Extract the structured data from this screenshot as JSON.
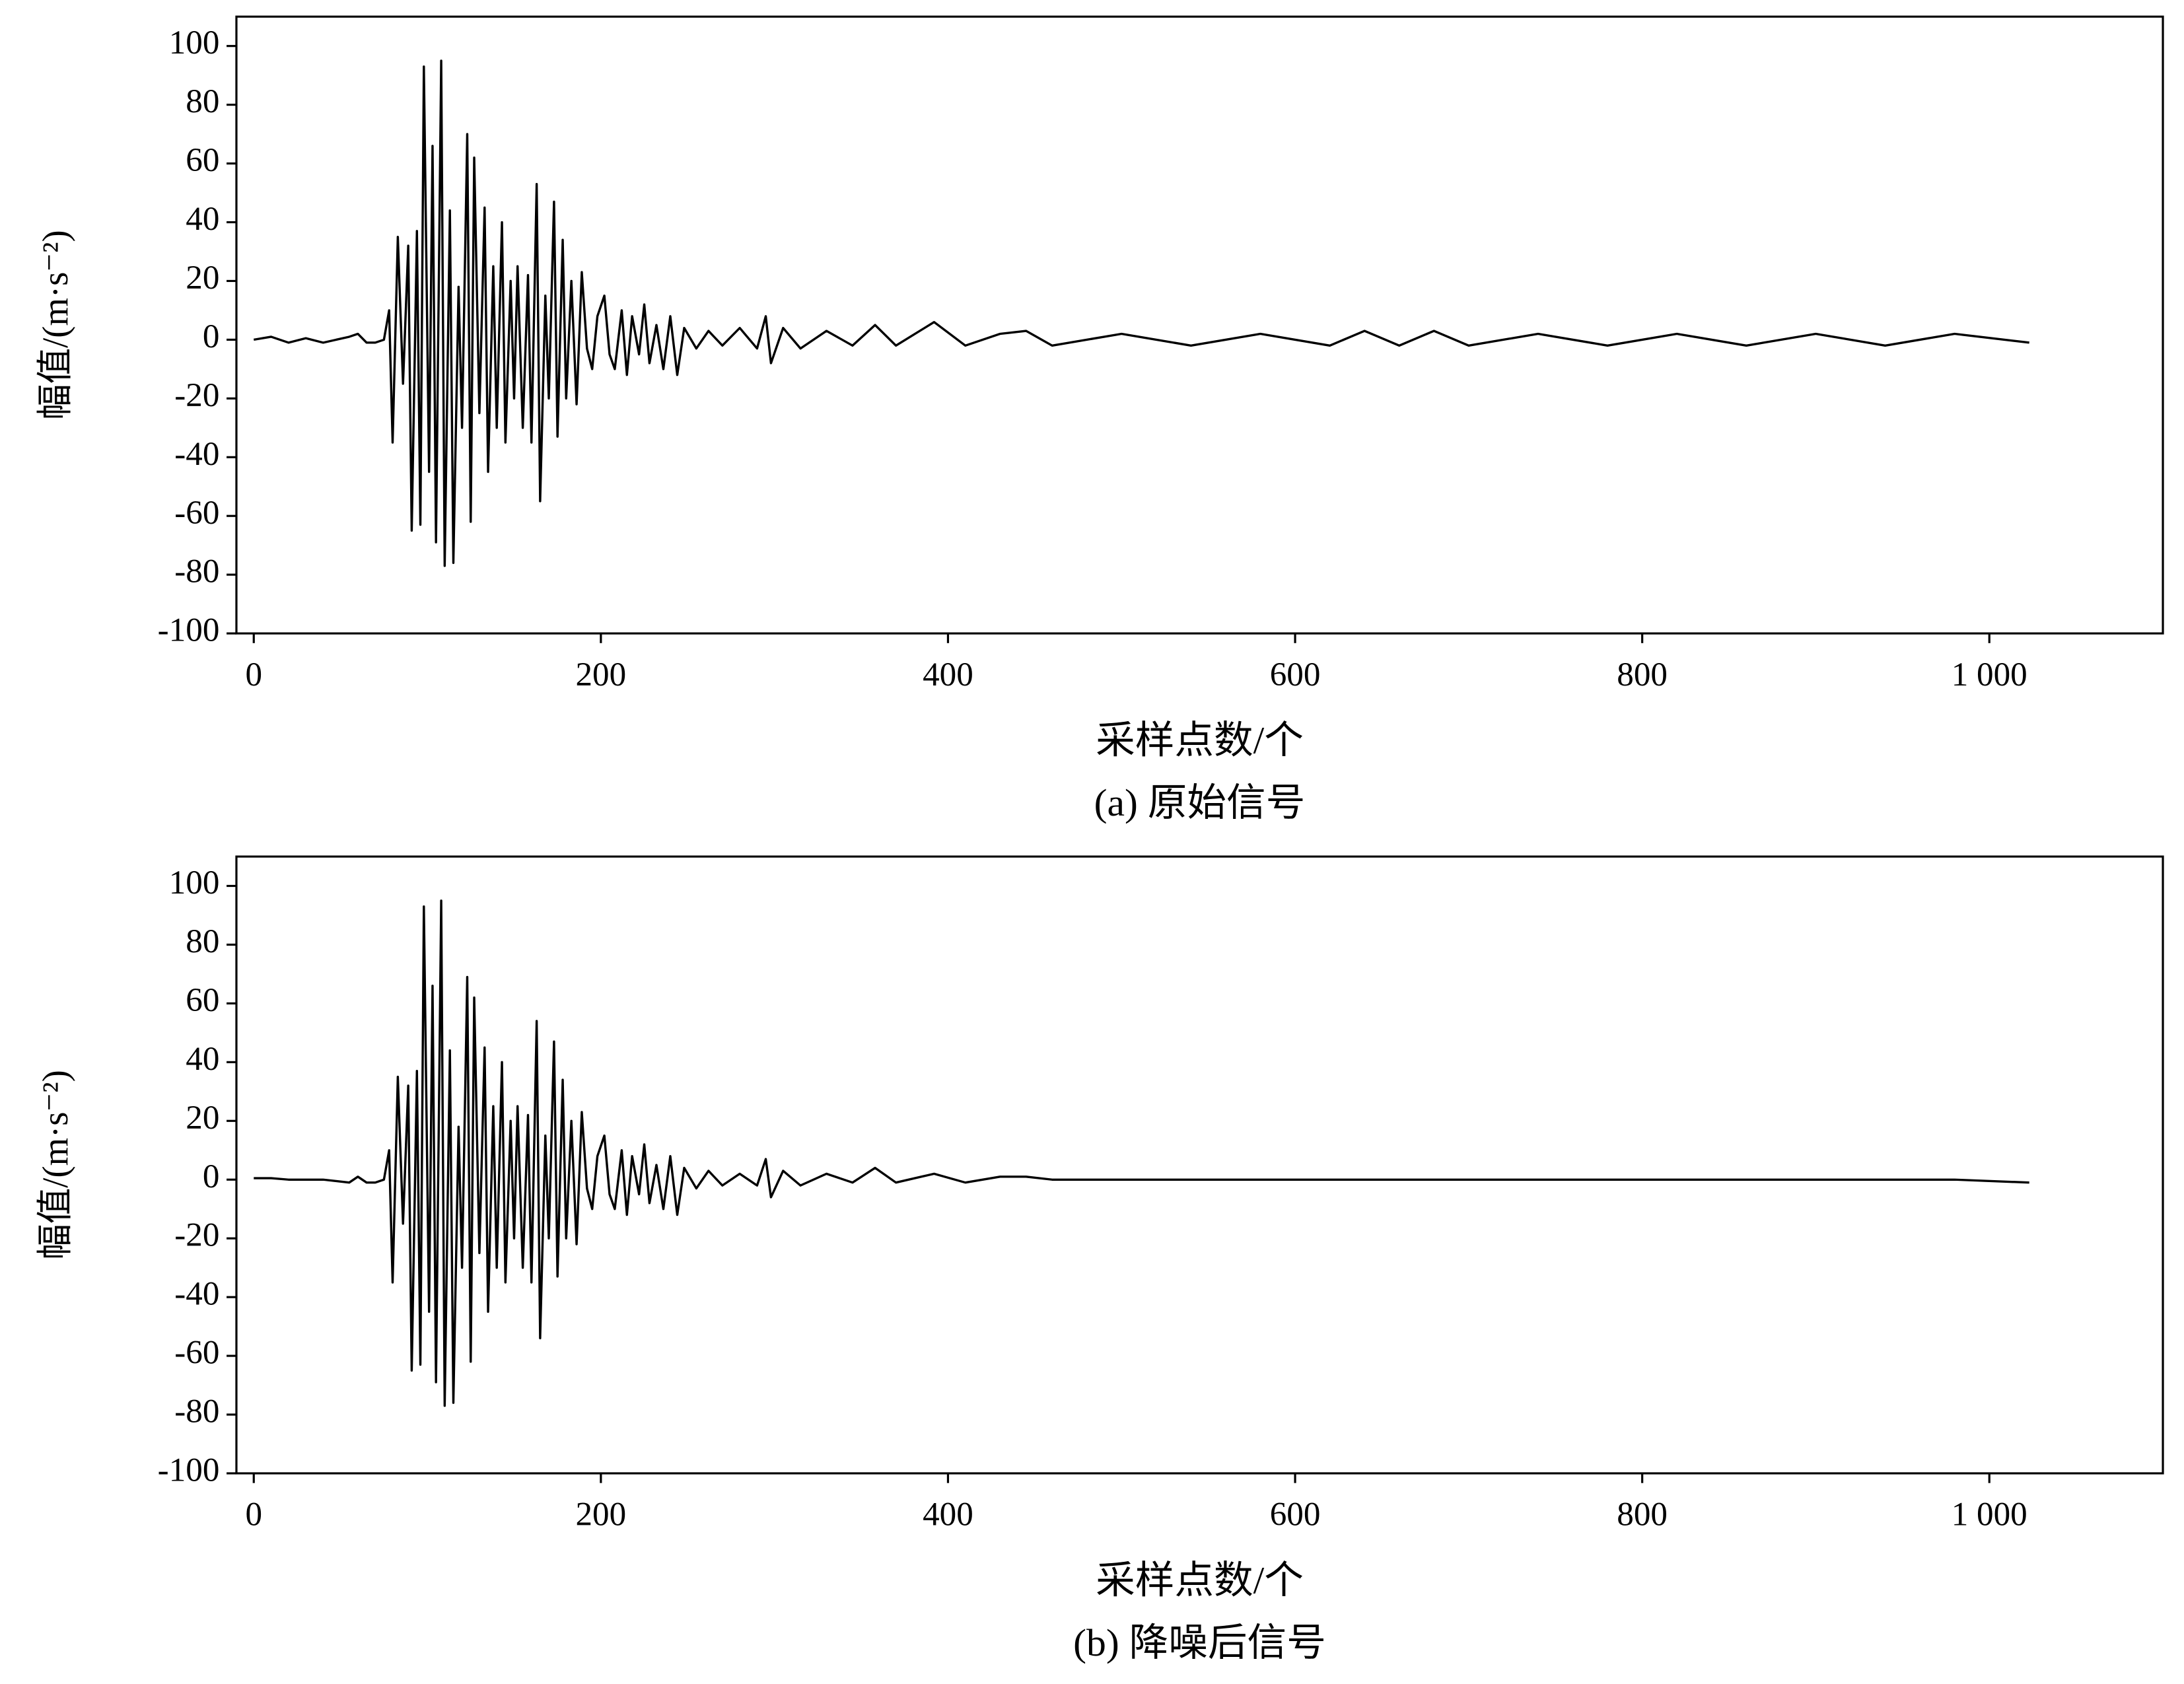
{
  "chart_data": [
    {
      "type": "line",
      "caption": "(a) 原始信号",
      "xlabel": "采样点数/个",
      "ylabel": "幅值/(m·s⁻²)",
      "xlim": [
        -10,
        1100
      ],
      "ylim": [
        -100,
        110
      ],
      "xticks": [
        0,
        200,
        400,
        600,
        800,
        {
          "value": 1000,
          "label": "1 000"
        }
      ],
      "yticks": [
        -100,
        -80,
        -60,
        -40,
        -20,
        0,
        20,
        40,
        60,
        80,
        100
      ],
      "x": [
        0,
        10,
        20,
        30,
        40,
        55,
        60,
        65,
        70,
        75,
        78,
        80,
        83,
        86,
        89,
        91,
        94,
        96,
        98,
        101,
        103,
        105,
        108,
        110,
        113,
        115,
        118,
        120,
        123,
        125,
        127,
        130,
        133,
        135,
        138,
        140,
        143,
        145,
        148,
        150,
        152,
        155,
        158,
        160,
        163,
        165,
        168,
        170,
        173,
        175,
        178,
        180,
        183,
        186,
        189,
        192,
        195,
        198,
        202,
        205,
        208,
        212,
        215,
        218,
        222,
        225,
        228,
        232,
        236,
        240,
        244,
        248,
        255,
        262,
        270,
        280,
        290,
        295,
        298,
        305,
        315,
        330,
        345,
        358,
        370,
        392,
        410,
        430,
        445,
        460,
        500,
        540,
        580,
        620,
        640,
        660,
        680,
        700,
        740,
        780,
        820,
        860,
        900,
        940,
        980,
        1023
      ],
      "series": [
        {
          "color": "#000000",
          "values": [
            0,
            1,
            -1,
            0.5,
            -1,
            1,
            2,
            -1,
            -1,
            0,
            10,
            -35,
            35,
            -15,
            32,
            -65,
            37,
            -63,
            93,
            -45,
            66,
            -69,
            95,
            -77,
            44,
            -76,
            18,
            -30,
            70,
            -62,
            62,
            -25,
            45,
            -45,
            25,
            -30,
            40,
            -35,
            20,
            -20,
            25,
            -30,
            22,
            -35,
            53,
            -55,
            15,
            -20,
            47,
            -33,
            34,
            -20,
            20,
            -22,
            23,
            -3,
            -10,
            8,
            15,
            -5,
            -10,
            10,
            -12,
            8,
            -5,
            12,
            -8,
            5,
            -10,
            8,
            -12,
            4,
            -3,
            3,
            -2,
            4,
            -3,
            8,
            -8,
            4,
            -3,
            3,
            -2,
            5,
            -2,
            6,
            -2,
            2,
            3,
            -2,
            2,
            -2,
            2,
            -2,
            3,
            -2,
            3,
            -2,
            2,
            -2,
            2,
            -2,
            2,
            -2,
            2,
            -1
          ]
        }
      ]
    },
    {
      "type": "line",
      "caption": "(b) 降噪后信号",
      "xlabel": "采样点数/个",
      "ylabel": "幅值/(m·s⁻²)",
      "xlim": [
        -10,
        1100
      ],
      "ylim": [
        -100,
        110
      ],
      "xticks": [
        0,
        200,
        400,
        600,
        800,
        {
          "value": 1000,
          "label": "1 000"
        }
      ],
      "yticks": [
        -100,
        -80,
        -60,
        -40,
        -20,
        0,
        20,
        40,
        60,
        80,
        100
      ],
      "x": [
        0,
        10,
        20,
        30,
        40,
        55,
        60,
        65,
        70,
        75,
        78,
        80,
        83,
        86,
        89,
        91,
        94,
        96,
        98,
        101,
        103,
        105,
        108,
        110,
        113,
        115,
        118,
        120,
        123,
        125,
        127,
        130,
        133,
        135,
        138,
        140,
        143,
        145,
        148,
        150,
        152,
        155,
        158,
        160,
        163,
        165,
        168,
        170,
        173,
        175,
        178,
        180,
        183,
        186,
        189,
        192,
        195,
        198,
        202,
        205,
        208,
        212,
        215,
        218,
        222,
        225,
        228,
        232,
        236,
        240,
        244,
        248,
        255,
        262,
        270,
        280,
        290,
        295,
        298,
        305,
        315,
        330,
        345,
        358,
        370,
        392,
        410,
        430,
        445,
        460,
        500,
        540,
        580,
        620,
        640,
        660,
        680,
        700,
        740,
        780,
        820,
        860,
        900,
        940,
        980,
        1023
      ],
      "series": [
        {
          "color": "#000000",
          "values": [
            0.5,
            0.5,
            0,
            0,
            0,
            -1,
            1,
            -1,
            -1,
            0,
            10,
            -35,
            35,
            -15,
            32,
            -65,
            37,
            -63,
            93,
            -45,
            66,
            -69,
            95,
            -77,
            44,
            -76,
            18,
            -30,
            69,
            -62,
            62,
            -25,
            45,
            -45,
            25,
            -30,
            40,
            -35,
            20,
            -20,
            25,
            -30,
            22,
            -35,
            54,
            -54,
            15,
            -20,
            47,
            -33,
            34,
            -20,
            20,
            -22,
            23,
            -3,
            -10,
            8,
            15,
            -5,
            -10,
            10,
            -12,
            8,
            -5,
            12,
            -8,
            5,
            -10,
            8,
            -12,
            4,
            -3,
            3,
            -2,
            2,
            -2,
            7,
            -6,
            3,
            -2,
            2,
            -1,
            4,
            -1,
            2,
            -1,
            1,
            1,
            0,
            0,
            0,
            0,
            0,
            0,
            0,
            0,
            0,
            0,
            0,
            0,
            0,
            0,
            0,
            0,
            -1
          ]
        }
      ]
    }
  ]
}
